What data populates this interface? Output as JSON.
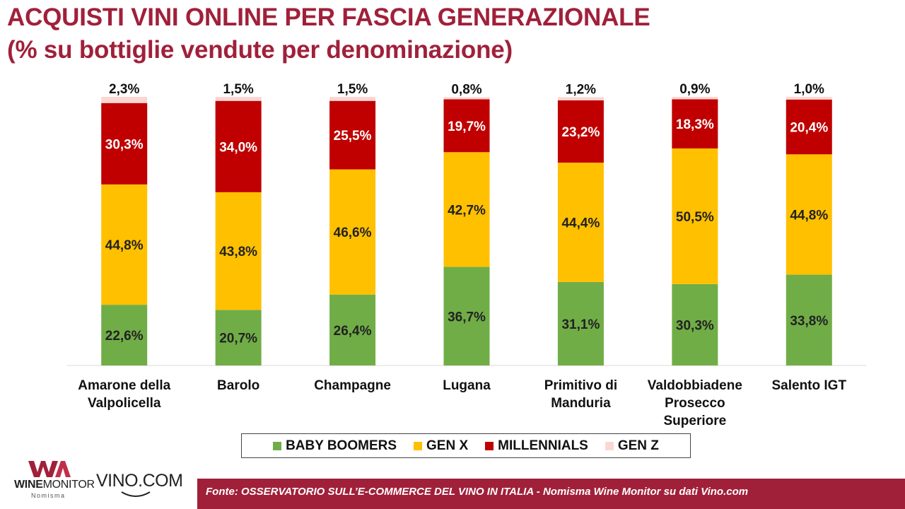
{
  "title": {
    "line1": "ACQUISTI VINI ONLINE PER FASCIA GENERAZIONALE",
    "line2": "(% su bottiglie vendute per denominazione)"
  },
  "colors": {
    "brand": "#a0203a",
    "baby_boomers": "#70ad47",
    "gen_x": "#ffc000",
    "millennials": "#c00000",
    "gen_z": "#fbd7d3"
  },
  "chart_data": {
    "type": "bar",
    "stacked": true,
    "categories": [
      [
        "Amarone della",
        "Valpolicella"
      ],
      [
        "Barolo"
      ],
      [
        "Champagne"
      ],
      [
        "Lugana"
      ],
      [
        "Primitivo di",
        "Manduria"
      ],
      [
        "Valdobbiadene",
        "Prosecco",
        "Superiore"
      ],
      [
        "Salento IGT"
      ]
    ],
    "series": [
      {
        "name": "BABY BOOMERS",
        "color": "#70ad47",
        "values": [
          22.6,
          20.7,
          26.4,
          36.7,
          31.1,
          30.3,
          33.8
        ],
        "labels": [
          "22,6%",
          "20,7%",
          "26,4%",
          "36,7%",
          "31,1%",
          "30,3%",
          "33,8%"
        ],
        "label_color": "#222222"
      },
      {
        "name": "GEN X",
        "color": "#ffc000",
        "values": [
          44.8,
          43.8,
          46.6,
          42.7,
          44.4,
          50.5,
          44.8
        ],
        "labels": [
          "44,8%",
          "43,8%",
          "46,6%",
          "42,7%",
          "44,4%",
          "50,5%",
          "44,8%"
        ],
        "label_color": "#222222"
      },
      {
        "name": "MILLENNIALS",
        "color": "#c00000",
        "values": [
          30.3,
          34.0,
          25.5,
          19.7,
          23.2,
          18.3,
          20.4
        ],
        "labels": [
          "30,3%",
          "34,0%",
          "25,5%",
          "19,7%",
          "23,2%",
          "18,3%",
          "20,4%"
        ],
        "label_color": "#ffffff"
      },
      {
        "name": "GEN Z",
        "color": "#fbd7d3",
        "values": [
          2.3,
          1.5,
          1.5,
          0.8,
          1.2,
          0.9,
          1.0
        ],
        "labels": [
          "2,3%",
          "1,5%",
          "1,5%",
          "0,8%",
          "1,2%",
          "0,9%",
          "1,0%"
        ],
        "label_color": "#111111"
      }
    ],
    "ylim": [
      0,
      100
    ],
    "legend_position": "bottom"
  },
  "footer": {
    "source": "Fonte: OSSERVATORIO  SULL’E-COMMERCE DEL VINO IN ITALIA - Nomisma Wine Monitor su dati Vino.com"
  },
  "logos": {
    "winemonitor_bold": "WINE",
    "winemonitor_rest": "MONITOR",
    "winemonitor_sub": "Nomisma",
    "vino": "VINO.COM"
  }
}
